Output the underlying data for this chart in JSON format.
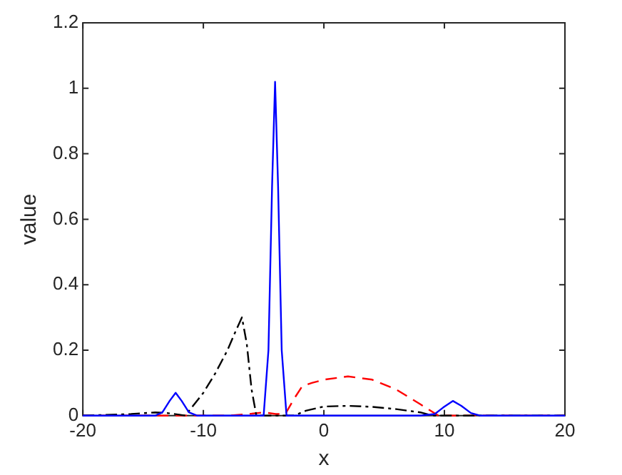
{
  "chart_data": {
    "type": "line",
    "xlabel": "x",
    "ylabel": "value",
    "xlim": [
      -20,
      20
    ],
    "xticks": [
      -20,
      -10,
      0,
      10,
      20
    ],
    "ylim": [
      0,
      1.2
    ],
    "yticks": [
      0,
      0.2,
      0.4,
      0.6,
      0.8,
      1,
      1.2
    ],
    "grid": false,
    "legend": false,
    "marker": "none",
    "series": [
      {
        "color": "#0000ff",
        "line_style": "solid",
        "x": [
          -20,
          -14,
          -13.4,
          -12.8,
          -12.3,
          -11.8,
          -11.2,
          -10.5,
          -6,
          -5,
          -4.6,
          -4.3,
          -4.05,
          -3.8,
          -3.5,
          -3.1,
          -2,
          8,
          9.2,
          9.9,
          10.7,
          11.4,
          12.2,
          13,
          20
        ],
        "values": [
          0,
          0,
          0.01,
          0.045,
          0.07,
          0.045,
          0.01,
          0,
          0,
          0,
          0.2,
          0.7,
          1.02,
          0.7,
          0.2,
          0,
          0,
          0,
          0.005,
          0.025,
          0.045,
          0.03,
          0.008,
          0,
          0
        ]
      },
      {
        "color": "#000000",
        "line_style": "dashdot",
        "x": [
          -20,
          -16,
          -14,
          -13,
          -12,
          -11.5,
          -10,
          -9,
          -8,
          -7.3,
          -6.8,
          -6.4,
          -6,
          -5.6,
          -4,
          -2.5,
          -1.5,
          0,
          2,
          4,
          6,
          8,
          9,
          20
        ],
        "values": [
          0,
          0.005,
          0.01,
          0.008,
          0.003,
          0,
          0.07,
          0.13,
          0.2,
          0.26,
          0.3,
          0.22,
          0.08,
          0,
          0,
          0,
          0.015,
          0.028,
          0.03,
          0.027,
          0.02,
          0.01,
          0,
          0
        ]
      },
      {
        "color": "#ff0000",
        "line_style": "dashed",
        "x": [
          -20,
          -8,
          -6,
          -5,
          -4,
          -3.2,
          -2.5,
          -1.8,
          -1,
          0,
          2,
          4,
          6,
          8,
          9.5,
          20
        ],
        "values": [
          0,
          0,
          0.006,
          0.01,
          0.005,
          0.005,
          0.05,
          0.09,
          0.1,
          0.11,
          0.12,
          0.11,
          0.08,
          0.035,
          0,
          0
        ]
      }
    ]
  }
}
